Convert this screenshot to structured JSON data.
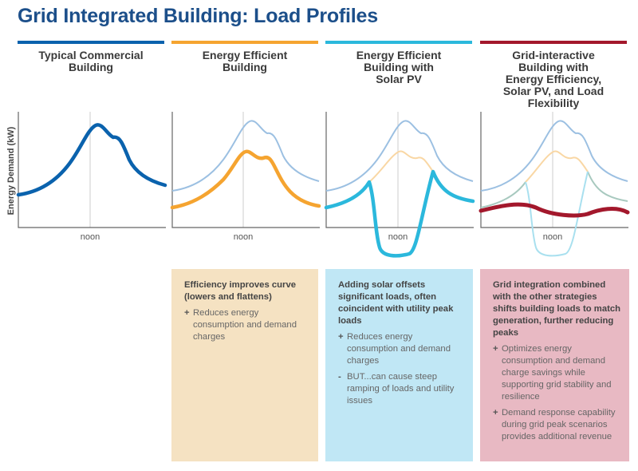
{
  "title": "Grid Integrated Building: Load Profiles",
  "y_axis_label": "Energy Demand (kW)",
  "x_tick_label": "noon",
  "colors": {
    "typical": "#0a62ad",
    "efficient": "#f5a430",
    "solar": "#2bb8dc",
    "grid": "#a3182c",
    "title": "#1c4f8a"
  },
  "columns": [
    {
      "heading": "Typical Commercial Building",
      "color": "#0a62ad"
    },
    {
      "heading": "Energy Efficient Building",
      "color": "#f5a430"
    },
    {
      "heading": "Energy Efficient Building with Solar PV",
      "color": "#2bb8dc"
    },
    {
      "heading": "Grid-interactive Building with Energy Efficiency, Solar PV, and Load Flexibility",
      "color": "#a3182c"
    }
  ],
  "boxes": [
    {
      "lead": "Efficiency improves curve (lowers and flattens)",
      "bg": "#f5e2c2",
      "items": [
        {
          "sym": "+",
          "text": "Reduces energy consumption and demand charges"
        }
      ]
    },
    {
      "lead": "Adding solar offsets significant loads, often coincident with utility peak loads",
      "bg": "#c0e7f5",
      "items": [
        {
          "sym": "+",
          "text": "Reduces energy consumption and demand charges"
        },
        {
          "sym": "-",
          "text": "BUT...can cause steep ramping of loads and utility issues"
        }
      ]
    },
    {
      "lead": "Grid integration combined with the other strategies shifts building loads to match generation, further reducing peaks",
      "bg": "#e8b9c3",
      "items": [
        {
          "sym": "+",
          "text": "Optimizes energy consumption and demand charge savings while supporting grid stability and resilience"
        },
        {
          "sym": "+",
          "text": "Demand response capability during grid peak scenarios provides additional revenue"
        }
      ]
    }
  ]
}
